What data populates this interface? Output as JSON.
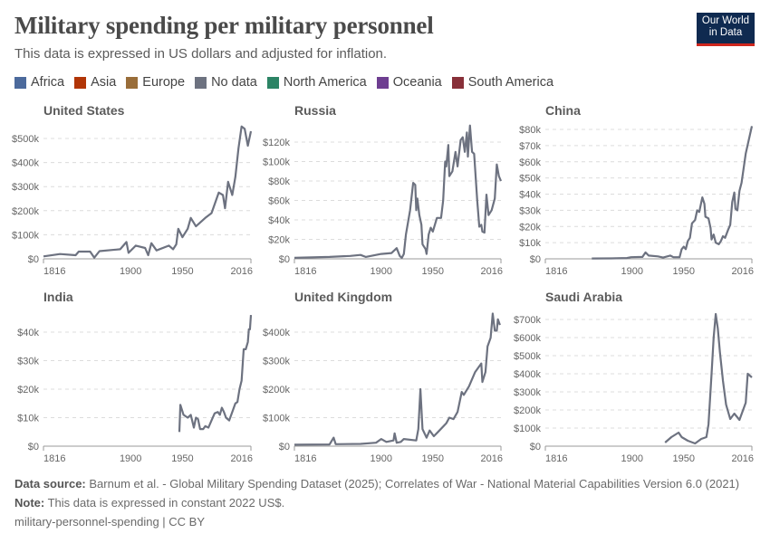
{
  "header": {
    "title": "Military spending per military personnel",
    "subtitle": "This data is expressed in US dollars and adjusted for inflation.",
    "logo_text": "Our World in Data"
  },
  "legend": [
    {
      "label": "Africa",
      "color": "#4c6a9c"
    },
    {
      "label": "Asia",
      "color": "#b13507"
    },
    {
      "label": "Europe",
      "color": "#996d39"
    },
    {
      "label": "No data",
      "color": "#6d7280"
    },
    {
      "label": "North America",
      "color": "#2c8465"
    },
    {
      "label": "Oceania",
      "color": "#6e3e91"
    },
    {
      "label": "South America",
      "color": "#883039"
    }
  ],
  "footer": {
    "source_label": "Data source:",
    "source_text": "Barnum et al. - Global Military Spending Dataset (2025); Correlates of War - National Material Capabilities Version 6.0 (2021)",
    "note_label": "Note:",
    "note_text": "This data is expressed in constant 2022 US$.",
    "slug": "military-personnel-spending | CC BY"
  },
  "chart_data": [
    {
      "type": "line",
      "title": "United States",
      "color": "#6d7280",
      "xlim": [
        1816,
        2016
      ],
      "ylim": [
        0,
        500000
      ],
      "xticks": [
        "1816",
        "1900",
        "1950",
        "2016"
      ],
      "yticks": [
        "$0",
        "$100k",
        "$200k",
        "$300k",
        "$400k",
        "$500k"
      ],
      "ytick_values": [
        0,
        100000,
        200000,
        300000,
        400000,
        500000
      ],
      "grid": true,
      "points": [
        [
          1816,
          10000
        ],
        [
          1832,
          20000
        ],
        [
          1847,
          15000
        ],
        [
          1850,
          30000
        ],
        [
          1861,
          30000
        ],
        [
          1865,
          5000
        ],
        [
          1870,
          32000
        ],
        [
          1890,
          40000
        ],
        [
          1896,
          70000
        ],
        [
          1898,
          25000
        ],
        [
          1905,
          55000
        ],
        [
          1914,
          45000
        ],
        [
          1917,
          15000
        ],
        [
          1920,
          65000
        ],
        [
          1925,
          35000
        ],
        [
          1937,
          55000
        ],
        [
          1941,
          40000
        ],
        [
          1944,
          60000
        ],
        [
          1946,
          125000
        ],
        [
          1950,
          90000
        ],
        [
          1955,
          125000
        ],
        [
          1958,
          170000
        ],
        [
          1963,
          135000
        ],
        [
          1972,
          170000
        ],
        [
          1978,
          190000
        ],
        [
          1985,
          275000
        ],
        [
          1989,
          265000
        ],
        [
          1991,
          210000
        ],
        [
          1994,
          320000
        ],
        [
          1998,
          265000
        ],
        [
          2001,
          340000
        ],
        [
          2004,
          460000
        ],
        [
          2007,
          550000
        ],
        [
          2010,
          540000
        ],
        [
          2013,
          470000
        ],
        [
          2016,
          530000
        ]
      ]
    },
    {
      "type": "line",
      "title": "Russia",
      "color": "#6d7280",
      "xlim": [
        1816,
        2016
      ],
      "ylim": [
        0,
        120000
      ],
      "xticks": [
        "1816",
        "1900",
        "1950",
        "2016"
      ],
      "yticks": [
        "$0",
        "$20k",
        "$40k",
        "$60k",
        "$80k",
        "$100k",
        "$120k"
      ],
      "ytick_values": [
        0,
        20000,
        40000,
        60000,
        80000,
        100000,
        120000
      ],
      "grid": true,
      "points": [
        [
          1816,
          1000
        ],
        [
          1850,
          2000
        ],
        [
          1870,
          3000
        ],
        [
          1880,
          4000
        ],
        [
          1885,
          2000
        ],
        [
          1900,
          5000
        ],
        [
          1910,
          6000
        ],
        [
          1915,
          11000
        ],
        [
          1918,
          3000
        ],
        [
          1920,
          1000
        ],
        [
          1922,
          5000
        ],
        [
          1924,
          25000
        ],
        [
          1928,
          50000
        ],
        [
          1931,
          78000
        ],
        [
          1933,
          76000
        ],
        [
          1934,
          50000
        ],
        [
          1935,
          62000
        ],
        [
          1937,
          45000
        ],
        [
          1939,
          35000
        ],
        [
          1940,
          15000
        ],
        [
          1943,
          10000
        ],
        [
          1944,
          5000
        ],
        [
          1946,
          25000
        ],
        [
          1948,
          32000
        ],
        [
          1950,
          28000
        ],
        [
          1954,
          42000
        ],
        [
          1958,
          42000
        ],
        [
          1960,
          60000
        ],
        [
          1962,
          100000
        ],
        [
          1963,
          95000
        ],
        [
          1965,
          117000
        ],
        [
          1966,
          85000
        ],
        [
          1969,
          90000
        ],
        [
          1972,
          110000
        ],
        [
          1974,
          95000
        ],
        [
          1977,
          122000
        ],
        [
          1979,
          125000
        ],
        [
          1981,
          110000
        ],
        [
          1983,
          130000
        ],
        [
          1984,
          105000
        ],
        [
          1986,
          137000
        ],
        [
          1988,
          110000
        ],
        [
          1990,
          108000
        ],
        [
          1993,
          60000
        ],
        [
          1995,
          33000
        ],
        [
          1997,
          35000
        ],
        [
          1998,
          28000
        ],
        [
          2000,
          27000
        ],
        [
          2002,
          66000
        ],
        [
          2004,
          45000
        ],
        [
          2007,
          50000
        ],
        [
          2010,
          62000
        ],
        [
          2012,
          97000
        ],
        [
          2014,
          85000
        ],
        [
          2016,
          80000
        ]
      ]
    },
    {
      "type": "line",
      "title": "China",
      "color": "#6d7280",
      "xlim": [
        1816,
        2016
      ],
      "ylim": [
        0,
        80000
      ],
      "xticks": [
        "1816",
        "1900",
        "1950",
        "2016"
      ],
      "yticks": [
        "$0",
        "$10k",
        "$20k",
        "$30k",
        "$40k",
        "$50k",
        "$60k",
        "$70k",
        "$80k"
      ],
      "ytick_values": [
        0,
        10000,
        20000,
        30000,
        40000,
        50000,
        60000,
        70000,
        80000
      ],
      "grid": true,
      "points": [
        [
          1861,
          200
        ],
        [
          1880,
          300
        ],
        [
          1895,
          500
        ],
        [
          1899,
          1000
        ],
        [
          1910,
          1200
        ],
        [
          1913,
          4000
        ],
        [
          1916,
          2000
        ],
        [
          1925,
          1500
        ],
        [
          1930,
          800
        ],
        [
          1937,
          2000
        ],
        [
          1940,
          1000
        ],
        [
          1946,
          1000
        ],
        [
          1948,
          6000
        ],
        [
          1950,
          7500
        ],
        [
          1952,
          6000
        ],
        [
          1954,
          11000
        ],
        [
          1956,
          13000
        ],
        [
          1958,
          22000
        ],
        [
          1961,
          24000
        ],
        [
          1963,
          30000
        ],
        [
          1965,
          29000
        ],
        [
          1968,
          38000
        ],
        [
          1970,
          34000
        ],
        [
          1971,
          26000
        ],
        [
          1974,
          25000
        ],
        [
          1976,
          19000
        ],
        [
          1977,
          12000
        ],
        [
          1979,
          15000
        ],
        [
          1981,
          10000
        ],
        [
          1984,
          9000
        ],
        [
          1986,
          11000
        ],
        [
          1988,
          14000
        ],
        [
          1990,
          13000
        ],
        [
          1993,
          18000
        ],
        [
          1995,
          21000
        ],
        [
          1997,
          35000
        ],
        [
          1999,
          41000
        ],
        [
          2000,
          31000
        ],
        [
          2002,
          30000
        ],
        [
          2004,
          42000
        ],
        [
          2006,
          47000
        ],
        [
          2010,
          65000
        ],
        [
          2016,
          82000
        ]
      ]
    },
    {
      "type": "line",
      "title": "India",
      "color": "#6d7280",
      "xlim": [
        1816,
        2016
      ],
      "ylim": [
        0,
        40000
      ],
      "xticks": [
        "1816",
        "1900",
        "1950",
        "2016"
      ],
      "yticks": [
        "$0",
        "$10k",
        "$20k",
        "$30k",
        "$40k"
      ],
      "ytick_values": [
        0,
        10000,
        20000,
        30000,
        40000
      ],
      "grid": true,
      "points": [
        [
          1947,
          5000
        ],
        [
          1948,
          14500
        ],
        [
          1951,
          11000
        ],
        [
          1955,
          10000
        ],
        [
          1958,
          11000
        ],
        [
          1961,
          6500
        ],
        [
          1963,
          10000
        ],
        [
          1965,
          9500
        ],
        [
          1967,
          6000
        ],
        [
          1970,
          6000
        ],
        [
          1972,
          7000
        ],
        [
          1975,
          6500
        ],
        [
          1978,
          9000
        ],
        [
          1981,
          11500
        ],
        [
          1984,
          12000
        ],
        [
          1986,
          11000
        ],
        [
          1988,
          13500
        ],
        [
          1990,
          12000
        ],
        [
          1992,
          10000
        ],
        [
          1995,
          9000
        ],
        [
          1998,
          12000
        ],
        [
          2001,
          15000
        ],
        [
          2003,
          15500
        ],
        [
          2005,
          20000
        ],
        [
          2007,
          23000
        ],
        [
          2009,
          34000
        ],
        [
          2011,
          34000
        ],
        [
          2013,
          36500
        ],
        [
          2014,
          41000
        ],
        [
          2015,
          41000
        ],
        [
          2016,
          46000
        ]
      ]
    },
    {
      "type": "line",
      "title": "United Kingdom",
      "color": "#6d7280",
      "xlim": [
        1816,
        2016
      ],
      "ylim": [
        0,
        400000
      ],
      "xticks": [
        "1816",
        "1900",
        "1950",
        "2016"
      ],
      "yticks": [
        "$0",
        "$100k",
        "$200k",
        "$300k",
        "$400k"
      ],
      "ytick_values": [
        0,
        100000,
        200000,
        300000,
        400000
      ],
      "grid": true,
      "points": [
        [
          1816,
          5000
        ],
        [
          1850,
          6000
        ],
        [
          1854,
          30000
        ],
        [
          1856,
          7000
        ],
        [
          1880,
          8000
        ],
        [
          1895,
          12000
        ],
        [
          1900,
          25000
        ],
        [
          1905,
          15000
        ],
        [
          1912,
          20000
        ],
        [
          1913,
          45000
        ],
        [
          1915,
          12000
        ],
        [
          1919,
          15000
        ],
        [
          1922,
          25000
        ],
        [
          1934,
          20000
        ],
        [
          1936,
          60000
        ],
        [
          1938,
          200000
        ],
        [
          1940,
          60000
        ],
        [
          1944,
          30000
        ],
        [
          1947,
          55000
        ],
        [
          1951,
          35000
        ],
        [
          1955,
          50000
        ],
        [
          1963,
          80000
        ],
        [
          1966,
          100000
        ],
        [
          1970,
          95000
        ],
        [
          1974,
          120000
        ],
        [
          1978,
          190000
        ],
        [
          1980,
          180000
        ],
        [
          1985,
          210000
        ],
        [
          1991,
          260000
        ],
        [
          1997,
          290000
        ],
        [
          1998,
          225000
        ],
        [
          2001,
          260000
        ],
        [
          2003,
          350000
        ],
        [
          2006,
          380000
        ],
        [
          2008,
          465000
        ],
        [
          2010,
          405000
        ],
        [
          2012,
          405000
        ],
        [
          2013,
          445000
        ],
        [
          2015,
          425000
        ]
      ]
    },
    {
      "type": "line",
      "title": "Saudi Arabia",
      "color": "#6d7280",
      "xlim": [
        1816,
        2016
      ],
      "ylim": [
        0,
        700000
      ],
      "xticks": [
        "1816",
        "1900",
        "1950",
        "2016"
      ],
      "yticks": [
        "$0",
        "$100k",
        "$200k",
        "$300k",
        "$400k",
        "$500k",
        "$600k",
        "$700k"
      ],
      "ytick_values": [
        0,
        100000,
        200000,
        300000,
        400000,
        500000,
        600000,
        700000
      ],
      "grid": true,
      "points": [
        [
          1932,
          20000
        ],
        [
          1938,
          50000
        ],
        [
          1945,
          75000
        ],
        [
          1948,
          50000
        ],
        [
          1954,
          30000
        ],
        [
          1961,
          15000
        ],
        [
          1967,
          40000
        ],
        [
          1972,
          50000
        ],
        [
          1974,
          120000
        ],
        [
          1977,
          400000
        ],
        [
          1979,
          600000
        ],
        [
          1981,
          730000
        ],
        [
          1983,
          650000
        ],
        [
          1985,
          520000
        ],
        [
          1988,
          360000
        ],
        [
          1991,
          230000
        ],
        [
          1995,
          150000
        ],
        [
          1999,
          180000
        ],
        [
          2004,
          145000
        ],
        [
          2010,
          240000
        ],
        [
          2012,
          400000
        ],
        [
          2016,
          380000
        ]
      ]
    }
  ]
}
